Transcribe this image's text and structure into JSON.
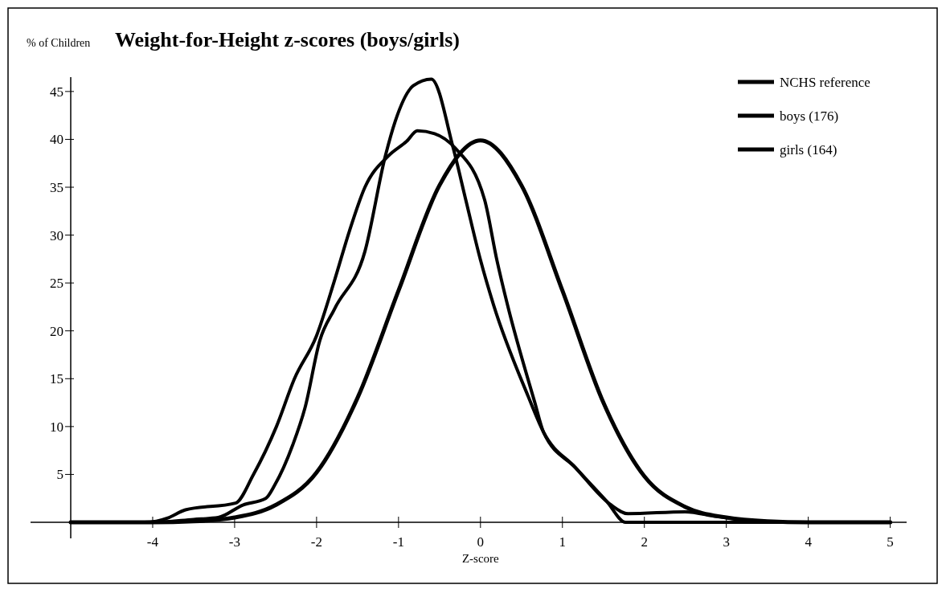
{
  "chart_data": {
    "type": "line",
    "title": "Weight-for-Height z-scores (boys/girls)",
    "ylabel": "% of Children",
    "xlabel": "Z-score",
    "xlim": [
      -5,
      5.2
    ],
    "ylim": [
      0,
      46.5
    ],
    "xticks": [
      -4,
      -3,
      -2,
      -1,
      0,
      1,
      2,
      3,
      4,
      5
    ],
    "yticks": [
      5,
      10,
      15,
      20,
      25,
      30,
      35,
      40,
      45
    ],
    "legend": "top right",
    "grid": false,
    "marker": "none",
    "line_style": "solid",
    "series": [
      {
        "name": "NCHS reference",
        "color": "#000000",
        "x": [
          -5,
          -4,
          -3.5,
          -3,
          -2.5,
          -2,
          -1.5,
          -1,
          -0.5,
          0,
          0.5,
          1,
          1.5,
          2,
          2.5,
          3,
          3.5,
          4,
          5
        ],
        "values": [
          0,
          0,
          0.1,
          0.5,
          1.8,
          5.2,
          13,
          24.2,
          35.2,
          39.9,
          35.2,
          24.2,
          12.5,
          4.8,
          1.6,
          0.5,
          0.1,
          0,
          0
        ]
      },
      {
        "name": "boys (176)",
        "color": "#000000",
        "x": [
          -5,
          -4,
          -3.5,
          -3.2,
          -2.9,
          -2.62,
          -2.51,
          -2.29,
          -2.14,
          -1.96,
          -1.78,
          -1.41,
          -1.16,
          -1.04,
          -0.82,
          -0.6,
          -0.33,
          -0.18,
          0,
          0.16,
          0.58,
          0.77,
          1.16,
          1.54,
          1.77,
          3,
          5
        ],
        "values": [
          0,
          0,
          0.3,
          0.5,
          1.8,
          2.5,
          3.9,
          8.1,
          12,
          19,
          22.3,
          28.3,
          38.3,
          41.9,
          45.6,
          46.3,
          39,
          33.7,
          27.4,
          22.7,
          13.2,
          9.4,
          5.7,
          2.2,
          0,
          0,
          0
        ]
      },
      {
        "name": "girls (164)",
        "color": "#000000",
        "x": [
          -5,
          -4.1,
          -3.8,
          -3.6,
          -2.99,
          -2.77,
          -2.49,
          -2.27,
          -2,
          -1.78,
          -1.6,
          -1.41,
          -1.12,
          -0.9,
          -0.77,
          -0.56,
          -0.31,
          0.05,
          0.2,
          0.33,
          0.66,
          0.77,
          1.16,
          1.58,
          1.8,
          2.5,
          2.88,
          3.26,
          3.5,
          5
        ],
        "values": [
          0,
          0,
          0.5,
          1.3,
          2,
          5,
          10,
          15,
          19.5,
          25.3,
          30.4,
          35,
          38.3,
          39.8,
          40.9,
          40.6,
          39.1,
          33.7,
          27.4,
          22.7,
          12.6,
          9.4,
          5.7,
          1.9,
          0.9,
          1.1,
          0.6,
          0.2,
          0,
          0
        ]
      }
    ]
  }
}
